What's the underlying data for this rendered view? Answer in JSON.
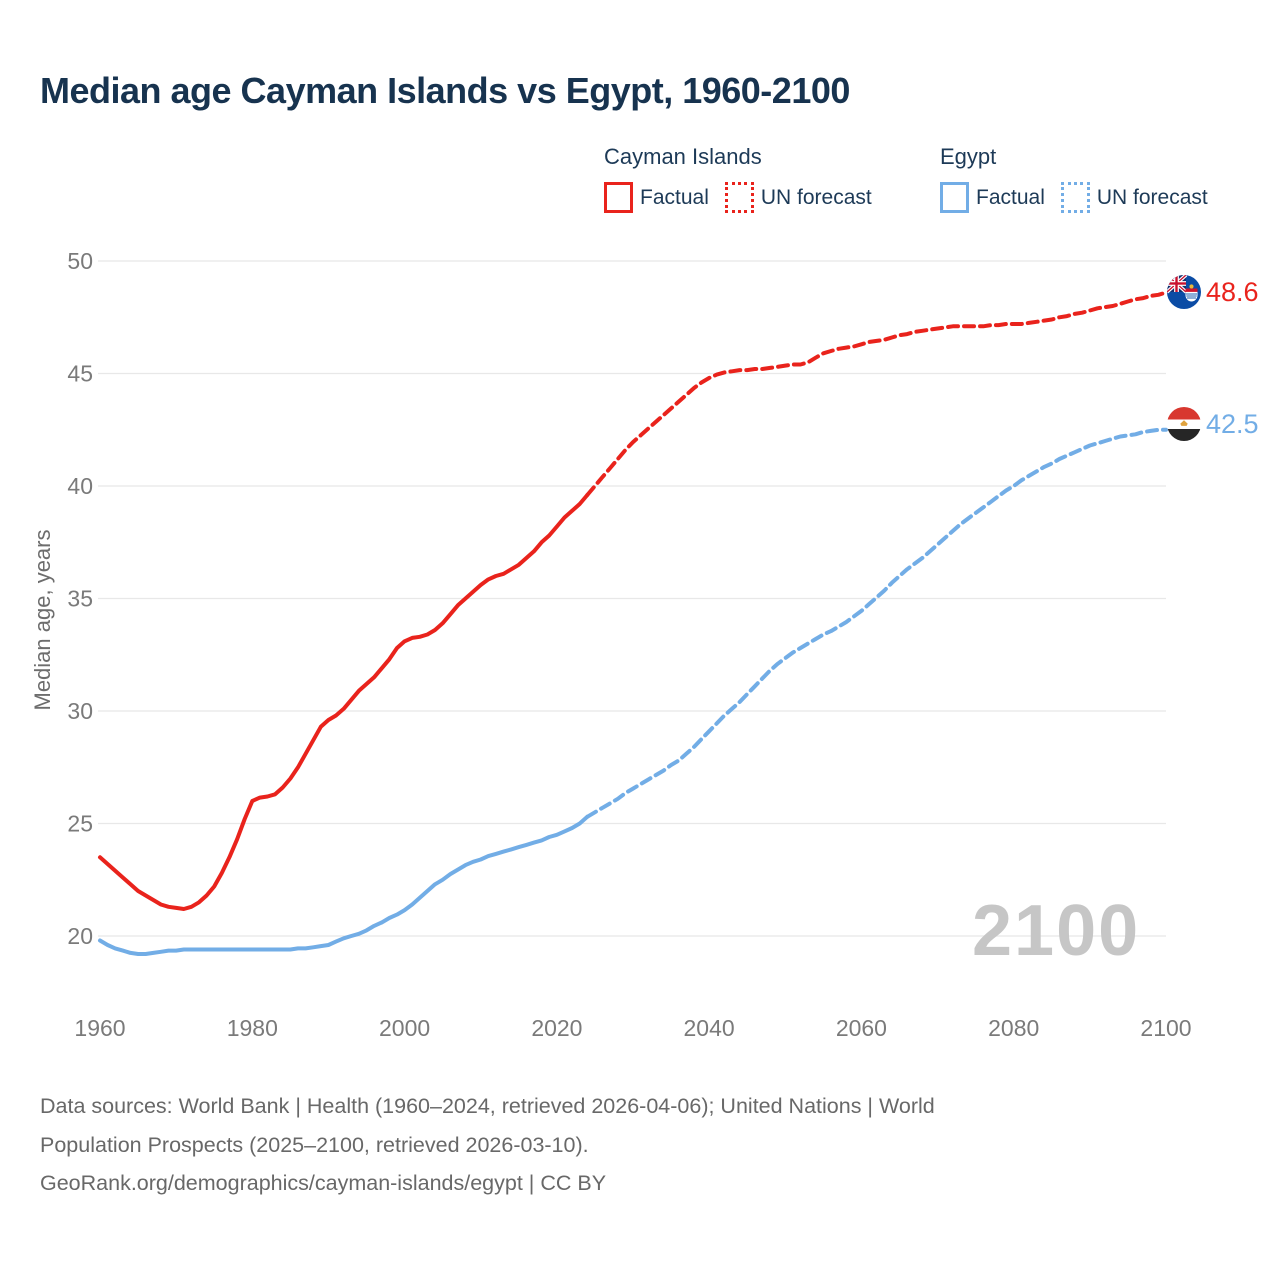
{
  "title": {
    "text": "Median age Cayman Islands vs Egypt, 1960-2100",
    "color": "#17334f"
  },
  "legend": {
    "text_color": "#1d3a57",
    "groups": [
      {
        "name": "Cayman Islands",
        "color": "#e9231c",
        "items": [
          {
            "label": "Factual",
            "line_style": "solid"
          },
          {
            "label": "UN forecast",
            "line_style": "dotted"
          }
        ]
      },
      {
        "name": "Egypt",
        "color": "#72ade6",
        "items": [
          {
            "label": "Factual",
            "line_style": "solid"
          },
          {
            "label": "UN forecast",
            "line_style": "dotted"
          }
        ]
      }
    ]
  },
  "watermark": {
    "text": "2100",
    "color": "#c6c6c6"
  },
  "end_labels": [
    {
      "series": "Cayman Islands",
      "value": "48.6",
      "color": "#e9231c",
      "flag": "cayman-islands-flag"
    },
    {
      "series": "Egypt",
      "value": "42.5",
      "color": "#72ade6",
      "flag": "egypt-flag"
    }
  ],
  "footer": {
    "lines": [
      "Data sources: World Bank | Health (1960–2024, retrieved 2026-04-06); United Nations | World",
      "Population Prospects (2025–2100, retrieved 2026-03-10).",
      "GeoRank.org/demographics/cayman-islands/egypt | CC BY"
    ]
  },
  "chart_data": {
    "type": "line",
    "title": "Median age Cayman Islands vs Egypt, 1960-2100",
    "xlabel": "",
    "ylabel": "Median age, years",
    "xlim": [
      1960,
      2100
    ],
    "ylim": [
      20,
      50
    ],
    "x_ticks": [
      1960,
      1980,
      2000,
      2020,
      2040,
      2060,
      2080,
      2100
    ],
    "y_ticks": [
      20,
      25,
      30,
      35,
      40,
      45,
      50
    ],
    "grid": "horizontal",
    "legend_position": "top-right",
    "series": [
      {
        "id": "cayman-factual",
        "name": "Cayman Islands — Factual",
        "color": "#e9231c",
        "style": "solid",
        "points": [
          [
            1960,
            23.5
          ],
          [
            1961,
            23.2
          ],
          [
            1962,
            22.9
          ],
          [
            1963,
            22.6
          ],
          [
            1964,
            22.3
          ],
          [
            1965,
            22.0
          ],
          [
            1966,
            21.8
          ],
          [
            1967,
            21.6
          ],
          [
            1968,
            21.4
          ],
          [
            1969,
            21.3
          ],
          [
            1970,
            21.25
          ],
          [
            1971,
            21.2
          ],
          [
            1972,
            21.3
          ],
          [
            1973,
            21.5
          ],
          [
            1974,
            21.8
          ],
          [
            1975,
            22.2
          ],
          [
            1976,
            22.8
          ],
          [
            1977,
            23.5
          ],
          [
            1978,
            24.3
          ],
          [
            1979,
            25.2
          ],
          [
            1980,
            26.0
          ],
          [
            1981,
            26.15
          ],
          [
            1982,
            26.2
          ],
          [
            1983,
            26.3
          ],
          [
            1984,
            26.6
          ],
          [
            1985,
            27.0
          ],
          [
            1986,
            27.5
          ],
          [
            1987,
            28.1
          ],
          [
            1988,
            28.7
          ],
          [
            1989,
            29.3
          ],
          [
            1990,
            29.6
          ],
          [
            1991,
            29.8
          ],
          [
            1992,
            30.1
          ],
          [
            1993,
            30.5
          ],
          [
            1994,
            30.9
          ],
          [
            1995,
            31.2
          ],
          [
            1996,
            31.5
          ],
          [
            1997,
            31.9
          ],
          [
            1998,
            32.3
          ],
          [
            1999,
            32.8
          ],
          [
            2000,
            33.1
          ],
          [
            2001,
            33.25
          ],
          [
            2002,
            33.3
          ],
          [
            2003,
            33.4
          ],
          [
            2004,
            33.6
          ],
          [
            2005,
            33.9
          ],
          [
            2006,
            34.3
          ],
          [
            2007,
            34.7
          ],
          [
            2008,
            35.0
          ],
          [
            2009,
            35.3
          ],
          [
            2010,
            35.6
          ],
          [
            2011,
            35.85
          ],
          [
            2012,
            36.0
          ],
          [
            2013,
            36.1
          ],
          [
            2014,
            36.3
          ],
          [
            2015,
            36.5
          ],
          [
            2016,
            36.8
          ],
          [
            2017,
            37.1
          ],
          [
            2018,
            37.5
          ],
          [
            2019,
            37.8
          ],
          [
            2020,
            38.2
          ],
          [
            2021,
            38.6
          ],
          [
            2022,
            38.9
          ],
          [
            2023,
            39.2
          ],
          [
            2024,
            39.6
          ]
        ]
      },
      {
        "id": "cayman-forecast",
        "name": "Cayman Islands — UN forecast",
        "color": "#e9231c",
        "style": "dashed",
        "points": [
          [
            2024,
            39.6
          ],
          [
            2025,
            40.0
          ],
          [
            2026,
            40.4
          ],
          [
            2027,
            40.8
          ],
          [
            2028,
            41.2
          ],
          [
            2029,
            41.6
          ],
          [
            2030,
            41.95
          ],
          [
            2031,
            42.25
          ],
          [
            2032,
            42.55
          ],
          [
            2033,
            42.85
          ],
          [
            2034,
            43.15
          ],
          [
            2035,
            43.45
          ],
          [
            2036,
            43.75
          ],
          [
            2037,
            44.05
          ],
          [
            2038,
            44.35
          ],
          [
            2039,
            44.6
          ],
          [
            2040,
            44.8
          ],
          [
            2041,
            44.95
          ],
          [
            2042,
            45.05
          ],
          [
            2043,
            45.1
          ],
          [
            2044,
            45.15
          ],
          [
            2045,
            45.15
          ],
          [
            2046,
            45.2
          ],
          [
            2047,
            45.2
          ],
          [
            2048,
            45.25
          ],
          [
            2049,
            45.3
          ],
          [
            2050,
            45.35
          ],
          [
            2051,
            45.4
          ],
          [
            2052,
            45.4
          ],
          [
            2053,
            45.5
          ],
          [
            2054,
            45.7
          ],
          [
            2055,
            45.9
          ],
          [
            2056,
            46.0
          ],
          [
            2057,
            46.1
          ],
          [
            2058,
            46.15
          ],
          [
            2059,
            46.2
          ],
          [
            2060,
            46.3
          ],
          [
            2061,
            46.4
          ],
          [
            2062,
            46.45
          ],
          [
            2063,
            46.5
          ],
          [
            2064,
            46.6
          ],
          [
            2065,
            46.7
          ],
          [
            2066,
            46.75
          ],
          [
            2067,
            46.85
          ],
          [
            2068,
            46.9
          ],
          [
            2069,
            46.95
          ],
          [
            2070,
            47.0
          ],
          [
            2071,
            47.05
          ],
          [
            2072,
            47.1
          ],
          [
            2073,
            47.1
          ],
          [
            2074,
            47.1
          ],
          [
            2075,
            47.1
          ],
          [
            2076,
            47.1
          ],
          [
            2077,
            47.15
          ],
          [
            2078,
            47.15
          ],
          [
            2079,
            47.2
          ],
          [
            2080,
            47.2
          ],
          [
            2081,
            47.2
          ],
          [
            2082,
            47.25
          ],
          [
            2083,
            47.3
          ],
          [
            2084,
            47.35
          ],
          [
            2085,
            47.4
          ],
          [
            2086,
            47.5
          ],
          [
            2087,
            47.55
          ],
          [
            2088,
            47.65
          ],
          [
            2089,
            47.7
          ],
          [
            2090,
            47.8
          ],
          [
            2091,
            47.9
          ],
          [
            2092,
            47.95
          ],
          [
            2093,
            48.0
          ],
          [
            2094,
            48.1
          ],
          [
            2095,
            48.2
          ],
          [
            2096,
            48.3
          ],
          [
            2097,
            48.35
          ],
          [
            2098,
            48.45
          ],
          [
            2099,
            48.5
          ],
          [
            2100,
            48.6
          ]
        ]
      },
      {
        "id": "egypt-factual",
        "name": "Egypt — Factual",
        "color": "#72ade6",
        "style": "solid",
        "points": [
          [
            1960,
            19.8
          ],
          [
            1961,
            19.6
          ],
          [
            1962,
            19.45
          ],
          [
            1963,
            19.35
          ],
          [
            1964,
            19.25
          ],
          [
            1965,
            19.2
          ],
          [
            1966,
            19.2
          ],
          [
            1967,
            19.25
          ],
          [
            1968,
            19.3
          ],
          [
            1969,
            19.35
          ],
          [
            1970,
            19.35
          ],
          [
            1971,
            19.4
          ],
          [
            1972,
            19.4
          ],
          [
            1973,
            19.4
          ],
          [
            1974,
            19.4
          ],
          [
            1975,
            19.4
          ],
          [
            1976,
            19.4
          ],
          [
            1977,
            19.4
          ],
          [
            1978,
            19.4
          ],
          [
            1979,
            19.4
          ],
          [
            1980,
            19.4
          ],
          [
            1981,
            19.4
          ],
          [
            1982,
            19.4
          ],
          [
            1983,
            19.4
          ],
          [
            1984,
            19.4
          ],
          [
            1985,
            19.4
          ],
          [
            1986,
            19.45
          ],
          [
            1987,
            19.45
          ],
          [
            1988,
            19.5
          ],
          [
            1989,
            19.55
          ],
          [
            1990,
            19.6
          ],
          [
            1991,
            19.75
          ],
          [
            1992,
            19.9
          ],
          [
            1993,
            20.0
          ],
          [
            1994,
            20.1
          ],
          [
            1995,
            20.25
          ],
          [
            1996,
            20.45
          ],
          [
            1997,
            20.6
          ],
          [
            1998,
            20.8
          ],
          [
            1999,
            20.95
          ],
          [
            2000,
            21.15
          ],
          [
            2001,
            21.4
          ],
          [
            2002,
            21.7
          ],
          [
            2003,
            22.0
          ],
          [
            2004,
            22.3
          ],
          [
            2005,
            22.5
          ],
          [
            2006,
            22.75
          ],
          [
            2007,
            22.95
          ],
          [
            2008,
            23.15
          ],
          [
            2009,
            23.3
          ],
          [
            2010,
            23.4
          ],
          [
            2011,
            23.55
          ],
          [
            2012,
            23.65
          ],
          [
            2013,
            23.75
          ],
          [
            2014,
            23.85
          ],
          [
            2015,
            23.95
          ],
          [
            2016,
            24.05
          ],
          [
            2017,
            24.15
          ],
          [
            2018,
            24.25
          ],
          [
            2019,
            24.4
          ],
          [
            2020,
            24.5
          ],
          [
            2021,
            24.65
          ],
          [
            2022,
            24.8
          ],
          [
            2023,
            25.0
          ],
          [
            2024,
            25.3
          ]
        ]
      },
      {
        "id": "egypt-forecast",
        "name": "Egypt — UN forecast",
        "color": "#72ade6",
        "style": "dashed",
        "points": [
          [
            2024,
            25.3
          ],
          [
            2025,
            25.5
          ],
          [
            2026,
            25.7
          ],
          [
            2027,
            25.9
          ],
          [
            2028,
            26.1
          ],
          [
            2029,
            26.35
          ],
          [
            2030,
            26.55
          ],
          [
            2031,
            26.75
          ],
          [
            2032,
            26.95
          ],
          [
            2033,
            27.15
          ],
          [
            2034,
            27.35
          ],
          [
            2035,
            27.6
          ],
          [
            2036,
            27.8
          ],
          [
            2037,
            28.1
          ],
          [
            2038,
            28.4
          ],
          [
            2039,
            28.75
          ],
          [
            2040,
            29.1
          ],
          [
            2041,
            29.45
          ],
          [
            2042,
            29.8
          ],
          [
            2043,
            30.1
          ],
          [
            2044,
            30.4
          ],
          [
            2045,
            30.75
          ],
          [
            2046,
            31.1
          ],
          [
            2047,
            31.45
          ],
          [
            2048,
            31.8
          ],
          [
            2049,
            32.1
          ],
          [
            2050,
            32.35
          ],
          [
            2051,
            32.6
          ],
          [
            2052,
            32.8
          ],
          [
            2053,
            33.0
          ],
          [
            2054,
            33.2
          ],
          [
            2055,
            33.4
          ],
          [
            2056,
            33.55
          ],
          [
            2057,
            33.75
          ],
          [
            2058,
            33.95
          ],
          [
            2059,
            34.2
          ],
          [
            2060,
            34.45
          ],
          [
            2061,
            34.75
          ],
          [
            2062,
            35.05
          ],
          [
            2063,
            35.35
          ],
          [
            2064,
            35.7
          ],
          [
            2065,
            36.0
          ],
          [
            2066,
            36.3
          ],
          [
            2067,
            36.55
          ],
          [
            2068,
            36.8
          ],
          [
            2069,
            37.1
          ],
          [
            2070,
            37.4
          ],
          [
            2071,
            37.7
          ],
          [
            2072,
            38.0
          ],
          [
            2073,
            38.3
          ],
          [
            2074,
            38.55
          ],
          [
            2075,
            38.8
          ],
          [
            2076,
            39.05
          ],
          [
            2077,
            39.3
          ],
          [
            2078,
            39.55
          ],
          [
            2079,
            39.8
          ],
          [
            2080,
            40.0
          ],
          [
            2081,
            40.25
          ],
          [
            2082,
            40.45
          ],
          [
            2083,
            40.65
          ],
          [
            2084,
            40.85
          ],
          [
            2085,
            41.0
          ],
          [
            2086,
            41.2
          ],
          [
            2087,
            41.35
          ],
          [
            2088,
            41.5
          ],
          [
            2089,
            41.65
          ],
          [
            2090,
            41.8
          ],
          [
            2091,
            41.9
          ],
          [
            2092,
            42.0
          ],
          [
            2093,
            42.1
          ],
          [
            2094,
            42.2
          ],
          [
            2095,
            42.25
          ],
          [
            2096,
            42.3
          ],
          [
            2097,
            42.4
          ],
          [
            2098,
            42.45
          ],
          [
            2099,
            42.5
          ],
          [
            2100,
            42.5
          ]
        ]
      }
    ]
  }
}
